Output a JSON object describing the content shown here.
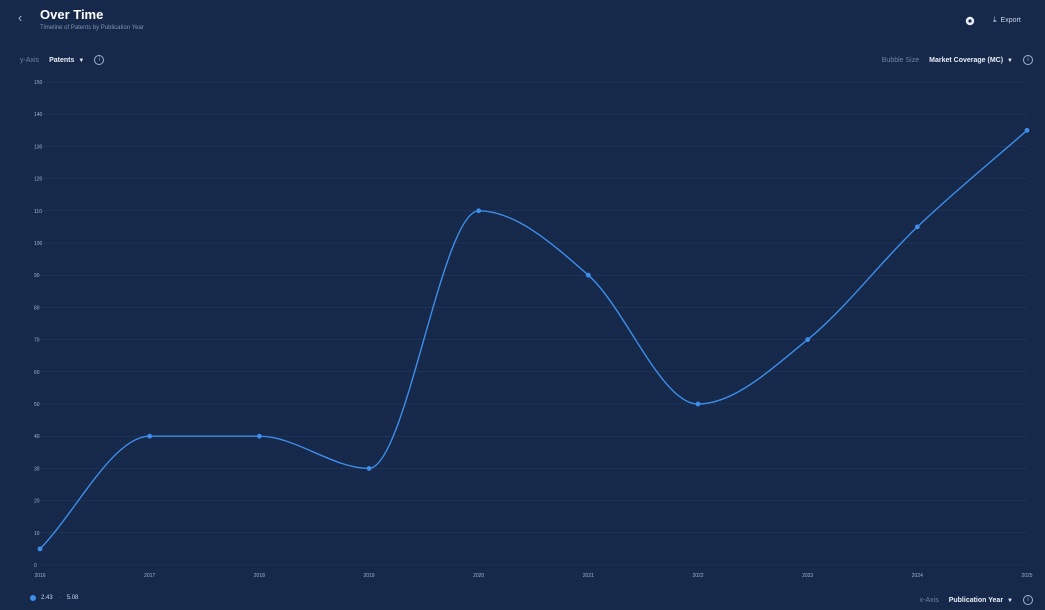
{
  "header": {
    "back_icon": "chevron-left-icon",
    "title": "Over Time",
    "subtitle": "Timeline of Patents by Publication Year",
    "settings_icon": "gear-icon",
    "export_label": "Export",
    "export_icon": "download-icon"
  },
  "controls": {
    "y_label": "y-Axis",
    "y_metric": "Patents",
    "bubble_label": "Bubble Size",
    "bubble_metric": "Market Coverage (MC)",
    "x_label": "x-Axis",
    "x_metric": "Publication Year"
  },
  "legend": {
    "left_value": "2.43",
    "right_value": "5.08"
  },
  "colors": {
    "background": "#16294a",
    "line": "#3d8eea",
    "grid": "#223a5e"
  },
  "chart_data": {
    "type": "line",
    "title": "Over Time",
    "x": [
      "2016",
      "2017",
      "2018",
      "2019",
      "2020",
      "2021",
      "2022",
      "2023",
      "2024",
      "2025"
    ],
    "series": [
      {
        "values": [
          5,
          40,
          40,
          30,
          110,
          90,
          50,
          70,
          105,
          135
        ]
      }
    ],
    "y_ticks": [
      0,
      10,
      20,
      30,
      40,
      50,
      60,
      70,
      80,
      90,
      100,
      110,
      120,
      130,
      140,
      150
    ],
    "ylim": [
      0,
      150
    ],
    "grid": true
  }
}
